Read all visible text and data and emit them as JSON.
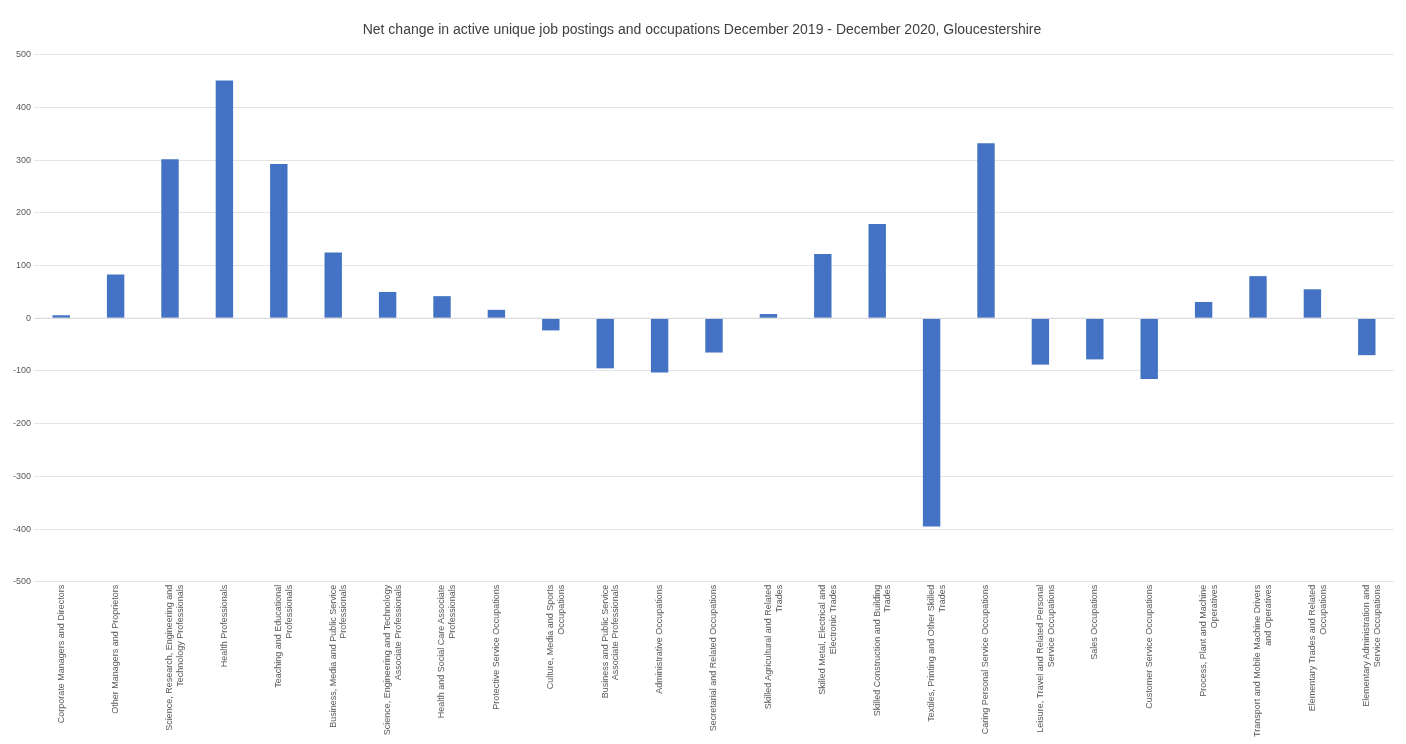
{
  "chart_data": {
    "type": "bar",
    "title": "Net change in active unique job postings and occupations December 2019 - December 2020, Gloucestershire",
    "categories": [
      "Corporate Managers and Directors",
      "Other Managers and Proprietors",
      "Science, Research, Engineering and Technology Professionals",
      "Health Professionals",
      "Teaching and Educational Professionals",
      "Business, Media and Public Service Professionals",
      "Science, Engineering and Technology Associate Professionals",
      "Health and Social Care Associate Professionals",
      "Protective Service Occupations",
      "Culture, Media and Sports Occupations",
      "Business and Public Service Associate Professionals",
      "Administrative Occupations",
      "Secretarial and Related Occupations",
      "Skilled Agricultural and Related Trades",
      "Skilled Metal, Electrical and Electronic Trades",
      "Skilled Construction and Building Trades",
      "Textiles, Printing and Other Skilled Trades",
      "Caring Personal Service Occupations",
      "Leisure, Travel and Related Personal Service Occupations",
      "Sales Occupations",
      "Customer Service Occupations",
      "Process, Plant and Machine Operatives",
      "Transport and Mobile Machine Drivers and Operatives",
      "Elementary Trades and Related Occupations",
      "Elementary Administration and Service Occupations"
    ],
    "values": [
      6,
      83,
      302,
      451,
      293,
      125,
      50,
      42,
      16,
      -23,
      -95,
      -103,
      -65,
      8,
      122,
      179,
      -395,
      332,
      -88,
      -78,
      -115,
      31,
      80,
      55,
      -70
    ],
    "color": "#4472c4",
    "ylim": [
      -500,
      500
    ],
    "yticks": [
      -500,
      -400,
      -300,
      -200,
      -100,
      0,
      100,
      200,
      300,
      400,
      500
    ],
    "grid": "y"
  }
}
